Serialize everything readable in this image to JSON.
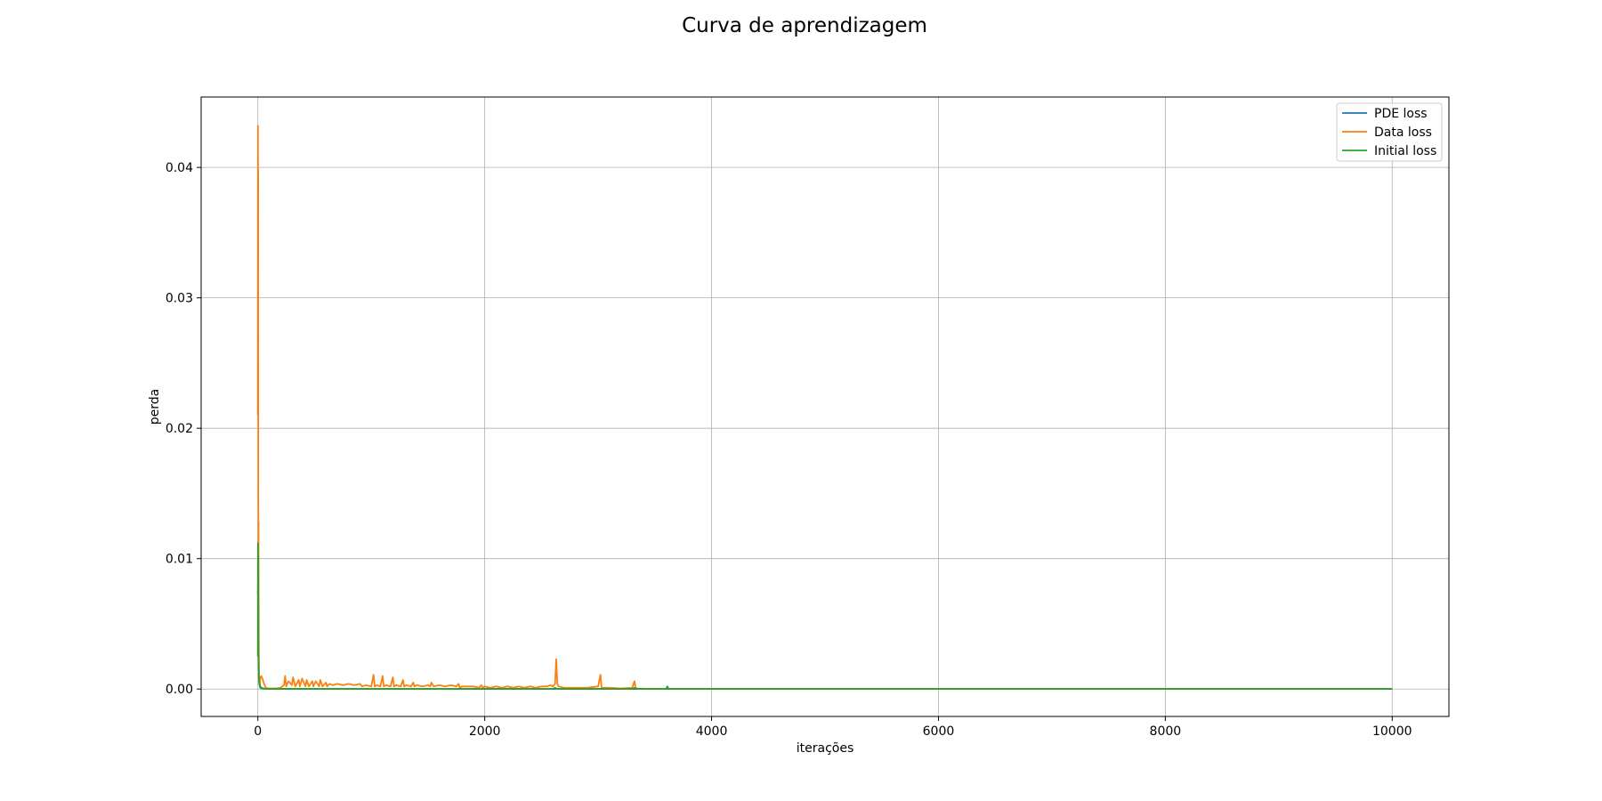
{
  "chart_data": {
    "type": "line",
    "title": "Curva de aprendizagem",
    "xlabel": "iterações",
    "ylabel": "perda",
    "xlim": [
      -500,
      10500
    ],
    "ylim": [
      -0.0021,
      0.0454
    ],
    "xticks": [
      0,
      2000,
      4000,
      6000,
      8000,
      10000
    ],
    "xtick_labels": [
      "0",
      "2000",
      "4000",
      "6000",
      "8000",
      "10000"
    ],
    "yticks": [
      0.0,
      0.01,
      0.02,
      0.03,
      0.04
    ],
    "ytick_labels": [
      "0.00",
      "0.01",
      "0.02",
      "0.03",
      "0.04"
    ],
    "grid": true,
    "legend": "top-right",
    "series": [
      {
        "name": "PDE loss",
        "color": "#1f77b4",
        "x": [
          0,
          2,
          4,
          6,
          8,
          10,
          15,
          20,
          30,
          50,
          100,
          200,
          500,
          1000,
          2000,
          3000,
          3600,
          4000,
          6000,
          8000,
          10000
        ],
        "y": [
          0.0072,
          0.0095,
          0.0068,
          0.0032,
          0.0018,
          0.0011,
          0.0005,
          0.0002,
          0.0001,
          5e-05,
          3e-05,
          2e-05,
          1e-05,
          1e-05,
          1e-05,
          1e-05,
          1e-05,
          1e-05,
          1e-05,
          1e-05,
          1e-05
        ]
      },
      {
        "name": "Data loss",
        "color": "#ff7f0e",
        "x": [
          0,
          1,
          2,
          3,
          4,
          5,
          6,
          7,
          8,
          9,
          10,
          12,
          15,
          18,
          22,
          30,
          40,
          55,
          70,
          90,
          120,
          160,
          200,
          230,
          240,
          250,
          270,
          300,
          310,
          330,
          360,
          370,
          390,
          420,
          430,
          450,
          480,
          490,
          510,
          540,
          550,
          570,
          600,
          610,
          630,
          660,
          700,
          750,
          800,
          850,
          900,
          920,
          950,
          1000,
          1020,
          1030,
          1050,
          1080,
          1100,
          1110,
          1130,
          1170,
          1190,
          1200,
          1220,
          1260,
          1280,
          1290,
          1310,
          1350,
          1370,
          1380,
          1400,
          1450,
          1500,
          1520,
          1530,
          1550,
          1600,
          1650,
          1700,
          1750,
          1770,
          1780,
          1800,
          1850,
          1900,
          1950,
          1970,
          1980,
          2000,
          2050,
          2100,
          2150,
          2200,
          2250,
          2300,
          2350,
          2400,
          2450,
          2500,
          2550,
          2580,
          2600,
          2620,
          2630,
          2640,
          2650,
          2700,
          2800,
          2900,
          3000,
          3020,
          3030,
          3050,
          3100,
          3200,
          3300,
          3320,
          3330,
          3340,
          3400,
          3500,
          3600,
          3610,
          3620,
          3700,
          4000,
          5000,
          6000,
          7000,
          8000,
          9000,
          10000
        ],
        "y": [
          0.021,
          0.0432,
          0.0342,
          0.0398,
          0.011,
          0.0085,
          0.0128,
          0.0075,
          0.004,
          0.002,
          0.001,
          0.0004,
          0.0003,
          0.0005,
          0.0009,
          0.001,
          0.0008,
          0.0004,
          0.0001,
          5e-05,
          5e-05,
          5e-05,
          0.0001,
          0.0003,
          0.001,
          0.0002,
          0.0006,
          0.0003,
          0.0009,
          0.0002,
          0.0007,
          0.0002,
          0.0008,
          0.0002,
          0.0007,
          0.0002,
          0.0006,
          0.0002,
          0.0006,
          0.0002,
          0.0007,
          0.0002,
          0.0005,
          0.0002,
          0.0004,
          0.0003,
          0.0004,
          0.0003,
          0.0004,
          0.0003,
          0.0004,
          0.0002,
          0.0003,
          0.0002,
          0.0011,
          0.0002,
          0.0003,
          0.0002,
          0.001,
          0.0002,
          0.0003,
          0.0002,
          0.0009,
          0.0002,
          0.0003,
          0.0002,
          0.0007,
          0.0002,
          0.0003,
          0.0002,
          0.0005,
          0.0002,
          0.0003,
          0.0002,
          0.0003,
          0.0002,
          0.0005,
          0.0002,
          0.0003,
          0.0002,
          0.0003,
          0.0002,
          0.0004,
          0.0001,
          0.0002,
          0.0002,
          0.0002,
          0.0001,
          0.0003,
          0.0001,
          0.0002,
          0.0001,
          0.0002,
          0.0001,
          0.0002,
          0.0001,
          0.0002,
          0.0001,
          0.0002,
          0.0001,
          0.0002,
          0.0002,
          0.0003,
          0.0002,
          0.0004,
          0.0023,
          0.0004,
          0.0002,
          0.0001,
          0.0001,
          0.0001,
          0.0002,
          0.0011,
          0.0001,
          0.0001,
          0.0001,
          5e-05,
          0.0001,
          0.0006,
          0.0001,
          5e-05,
          3e-05,
          2e-05,
          2e-05,
          0.0002,
          2e-05,
          1e-05,
          1e-05,
          1e-05,
          1e-05,
          1e-05,
          1e-05,
          1e-05,
          1e-05
        ]
      },
      {
        "name": "Initial loss",
        "color": "#2ca02c",
        "x": [
          0,
          1,
          2,
          3,
          4,
          5,
          6,
          8,
          10,
          15,
          20,
          30,
          50,
          100,
          200,
          500,
          1000,
          2000,
          2600,
          2620,
          2640,
          3000,
          3300,
          3320,
          3340,
          3600,
          3610,
          3620,
          4000,
          6000,
          8000,
          10000
        ],
        "y": [
          0.0025,
          0.0112,
          0.0048,
          0.0102,
          0.006,
          0.003,
          0.002,
          0.0012,
          0.0006,
          0.0003,
          0.0001,
          5e-05,
          2e-05,
          1e-05,
          1e-05,
          1e-05,
          1e-05,
          1e-05,
          1e-05,
          0.0001,
          1e-05,
          1e-05,
          1e-05,
          0.0001,
          1e-05,
          1e-05,
          0.0002,
          1e-05,
          1e-05,
          1e-05,
          1e-05,
          1e-05
        ]
      }
    ]
  }
}
